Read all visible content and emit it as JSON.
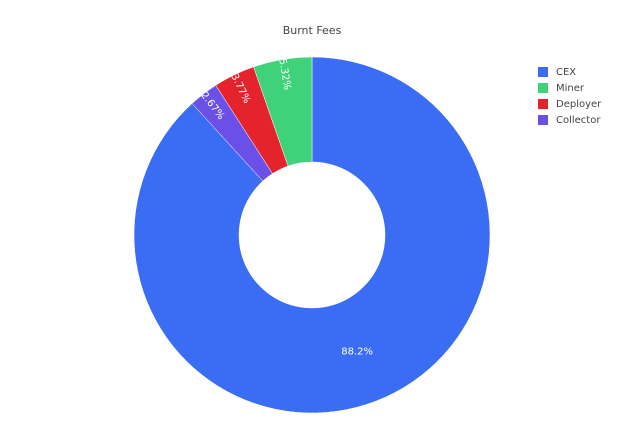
{
  "chart_data": {
    "type": "donut",
    "title": "Burnt Fees",
    "categories": [
      "CEX",
      "Miner",
      "Deployer",
      "Collector"
    ],
    "values": [
      88.2,
      5.32,
      3.77,
      2.67
    ],
    "value_labels": [
      "88.2%",
      "5.32%",
      "3.77%",
      "2.67%"
    ],
    "colors": [
      "#3a6cf4",
      "#3fd27a",
      "#e5232c",
      "#6a50e6"
    ]
  }
}
